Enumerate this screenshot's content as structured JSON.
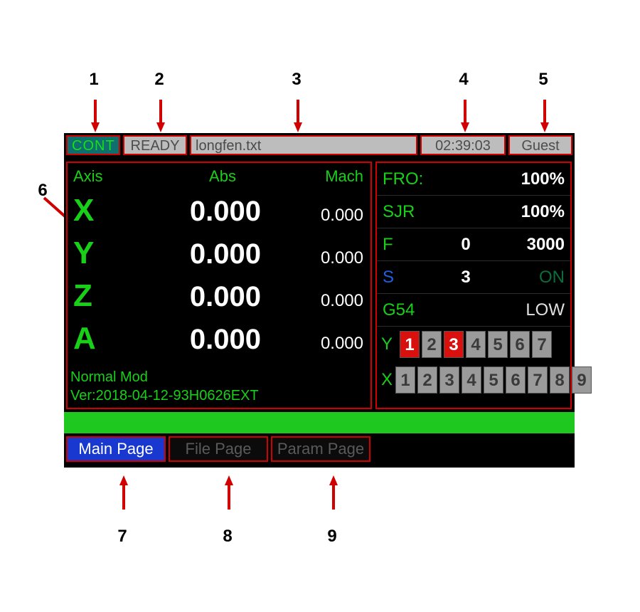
{
  "callouts": {
    "n1": "1",
    "n2": "2",
    "n3": "3",
    "n4": "4",
    "n5": "5",
    "n6": "6",
    "n7": "7",
    "n8": "8",
    "n9": "9"
  },
  "colors": {
    "bg": "#000000",
    "accent_green": "#18d018",
    "accent_red": "#d00000",
    "grey_fill": "#bdbdbd",
    "text_grey": "#4d4d4d",
    "strip": "#1ec81e",
    "tab_active_bg": "#1838d0",
    "cell_on": "#d8110e"
  },
  "topbar": {
    "mode": "CONT",
    "ready": "READY",
    "file": "longfen.txt",
    "time": "02:39:03",
    "user": "Guest"
  },
  "coord": {
    "hdr_axis": "Axis",
    "hdr_abs": "Abs",
    "hdr_mach": "Mach",
    "rows": [
      {
        "ax": "X",
        "abs": "0.000",
        "mach": "0.000"
      },
      {
        "ax": "Y",
        "abs": "0.000",
        "mach": "0.000"
      },
      {
        "ax": "Z",
        "abs": "0.000",
        "mach": "0.000"
      },
      {
        "ax": "A",
        "abs": "0.000",
        "mach": "0.000"
      }
    ],
    "mode_line": "Normal Mod",
    "ver_line": "Ver:2018-04-12-93H0626EXT"
  },
  "info": {
    "fro_label": "FRO:",
    "fro_val": "100%",
    "sjr_label": "SJR",
    "sjr_val": "100%",
    "f_label": "F",
    "f_v1": "0",
    "f_v2": "3000",
    "s_label": "S",
    "s_v1": "3",
    "s_v2": "ON",
    "g_label": "G54",
    "g_v2": "LOW",
    "y_label": "Y",
    "y_cells": [
      {
        "t": "1",
        "on": true
      },
      {
        "t": "2",
        "on": false
      },
      {
        "t": "3",
        "on": true
      },
      {
        "t": "4",
        "on": false
      },
      {
        "t": "5",
        "on": false
      },
      {
        "t": "6",
        "on": false
      },
      {
        "t": "7",
        "on": false
      }
    ],
    "x_label": "X",
    "x_cells": [
      {
        "t": "1",
        "on": false
      },
      {
        "t": "2",
        "on": false
      },
      {
        "t": "3",
        "on": false
      },
      {
        "t": "4",
        "on": false
      },
      {
        "t": "5",
        "on": false
      },
      {
        "t": "6",
        "on": false
      },
      {
        "t": "7",
        "on": false
      },
      {
        "t": "8",
        "on": false
      },
      {
        "t": "9",
        "on": false
      }
    ]
  },
  "tabs": {
    "main": "Main Page",
    "file": "File Page",
    "param": "Param Page"
  }
}
